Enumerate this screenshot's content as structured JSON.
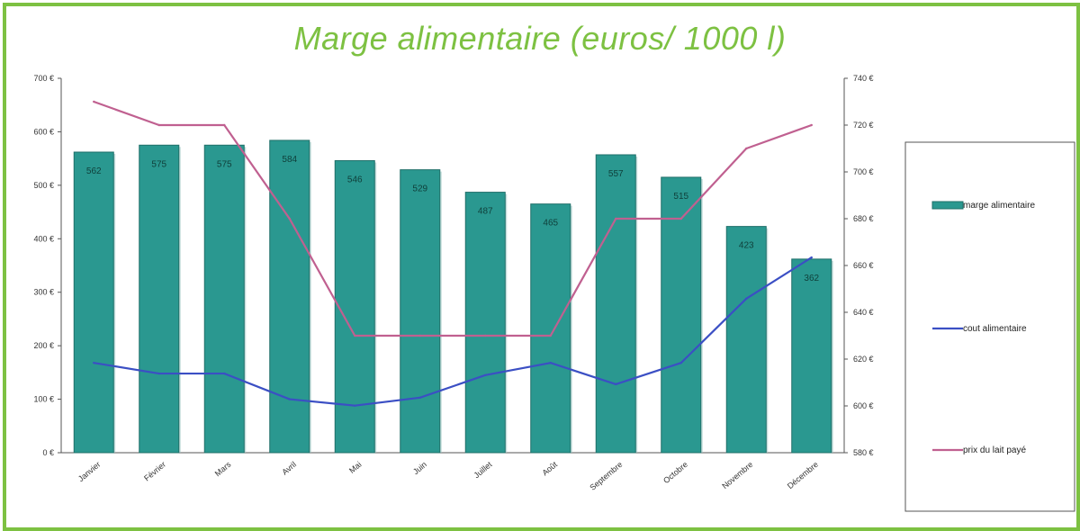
{
  "chart_data": {
    "type": "bar",
    "title": "Marge alimentaire (euros/ 1000 l)",
    "categories": [
      "Janvier",
      "Février",
      "Mars",
      "Avril",
      "Mai",
      "Juin",
      "Juillet",
      "Août",
      "Septembre",
      "Octobre",
      "Novembre",
      "Décembre"
    ],
    "series": [
      {
        "name": "marge alimentaire",
        "type": "bar",
        "axis": "left",
        "color": "#2a9890",
        "values": [
          562,
          575,
          575,
          584,
          546,
          529,
          487,
          465,
          557,
          515,
          423,
          362
        ]
      },
      {
        "name": "cout alimentaire",
        "type": "line",
        "axis": "left",
        "color": "#3b4fc4",
        "values": [
          168,
          148,
          148,
          100,
          88,
          103,
          145,
          168,
          128,
          168,
          288,
          365
        ]
      },
      {
        "name": "prix du lait payé",
        "type": "line",
        "axis": "right",
        "color": "#c06090",
        "values": [
          730,
          720,
          720,
          680,
          630,
          630,
          630,
          630,
          680,
          680,
          710,
          720
        ]
      }
    ],
    "y_left": {
      "min": 0,
      "max": 700,
      "step": 100,
      "suffix": " €"
    },
    "y_right": {
      "min": 580,
      "max": 740,
      "step": 20,
      "suffix": " €"
    },
    "legend_position": "right",
    "grid": false
  },
  "y_left_ticks": [
    "0 €",
    "100 €",
    "200 €",
    "300 €",
    "400 €",
    "500 €",
    "600 €",
    "700 €"
  ],
  "y_right_ticks": [
    "580 €",
    "600 €",
    "620 €",
    "640 €",
    "660 €",
    "680 €",
    "700 €",
    "720 €",
    "740 €"
  ]
}
